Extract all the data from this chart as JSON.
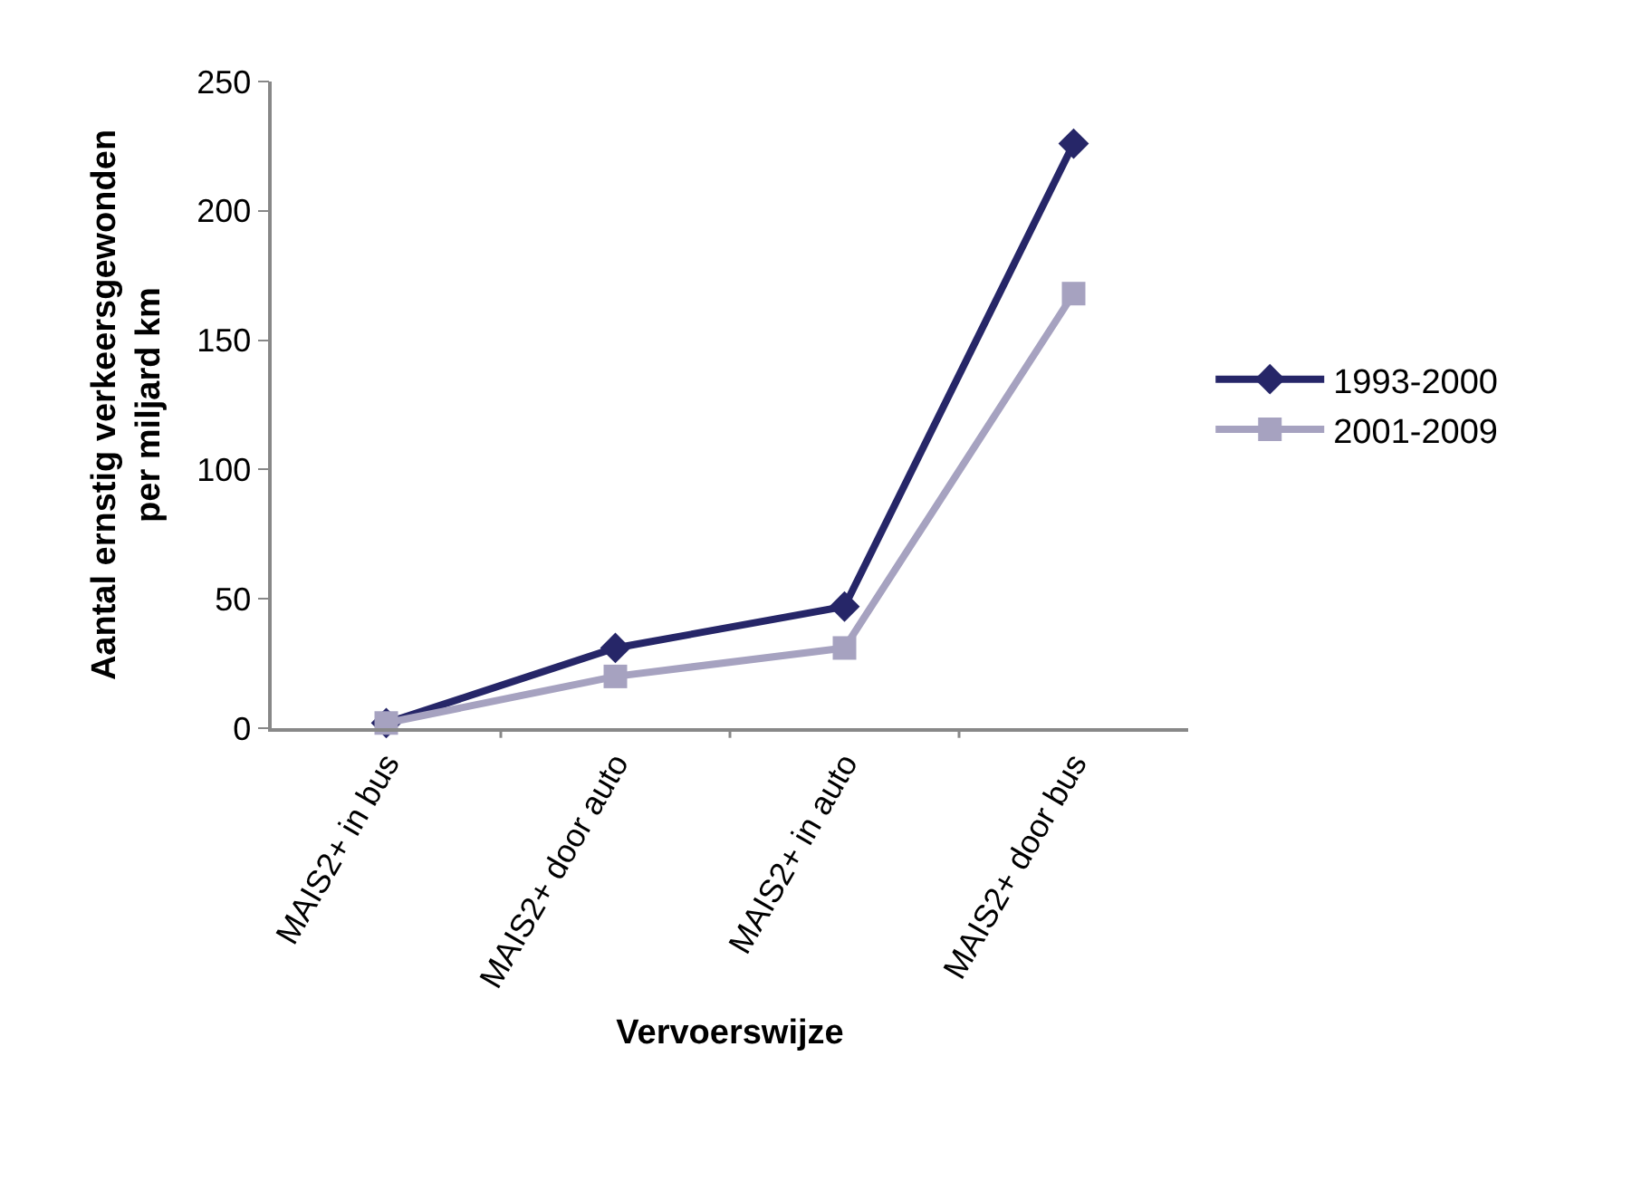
{
  "chart_data": {
    "type": "line",
    "xlabel": "Vervoerswijze",
    "ylabel": "Aantal ernstig verkeersgewonden\nper miljard km",
    "categories": [
      "MAIS2+ in bus",
      "MAIS2+ door auto",
      "MAIS2+ in auto",
      "MAIS2+ door bus"
    ],
    "series": [
      {
        "name": "1993-2000",
        "color": "#262668",
        "marker": "diamond",
        "values": [
          2,
          31,
          47,
          226
        ]
      },
      {
        "name": "2001-2009",
        "color": "#a6a2c0",
        "marker": "square",
        "values": [
          2,
          20,
          31,
          168
        ]
      }
    ],
    "ylim": [
      0,
      250
    ],
    "yticks": [
      0,
      50,
      100,
      150,
      200,
      250
    ],
    "legend": "right",
    "line_style": "solid"
  }
}
